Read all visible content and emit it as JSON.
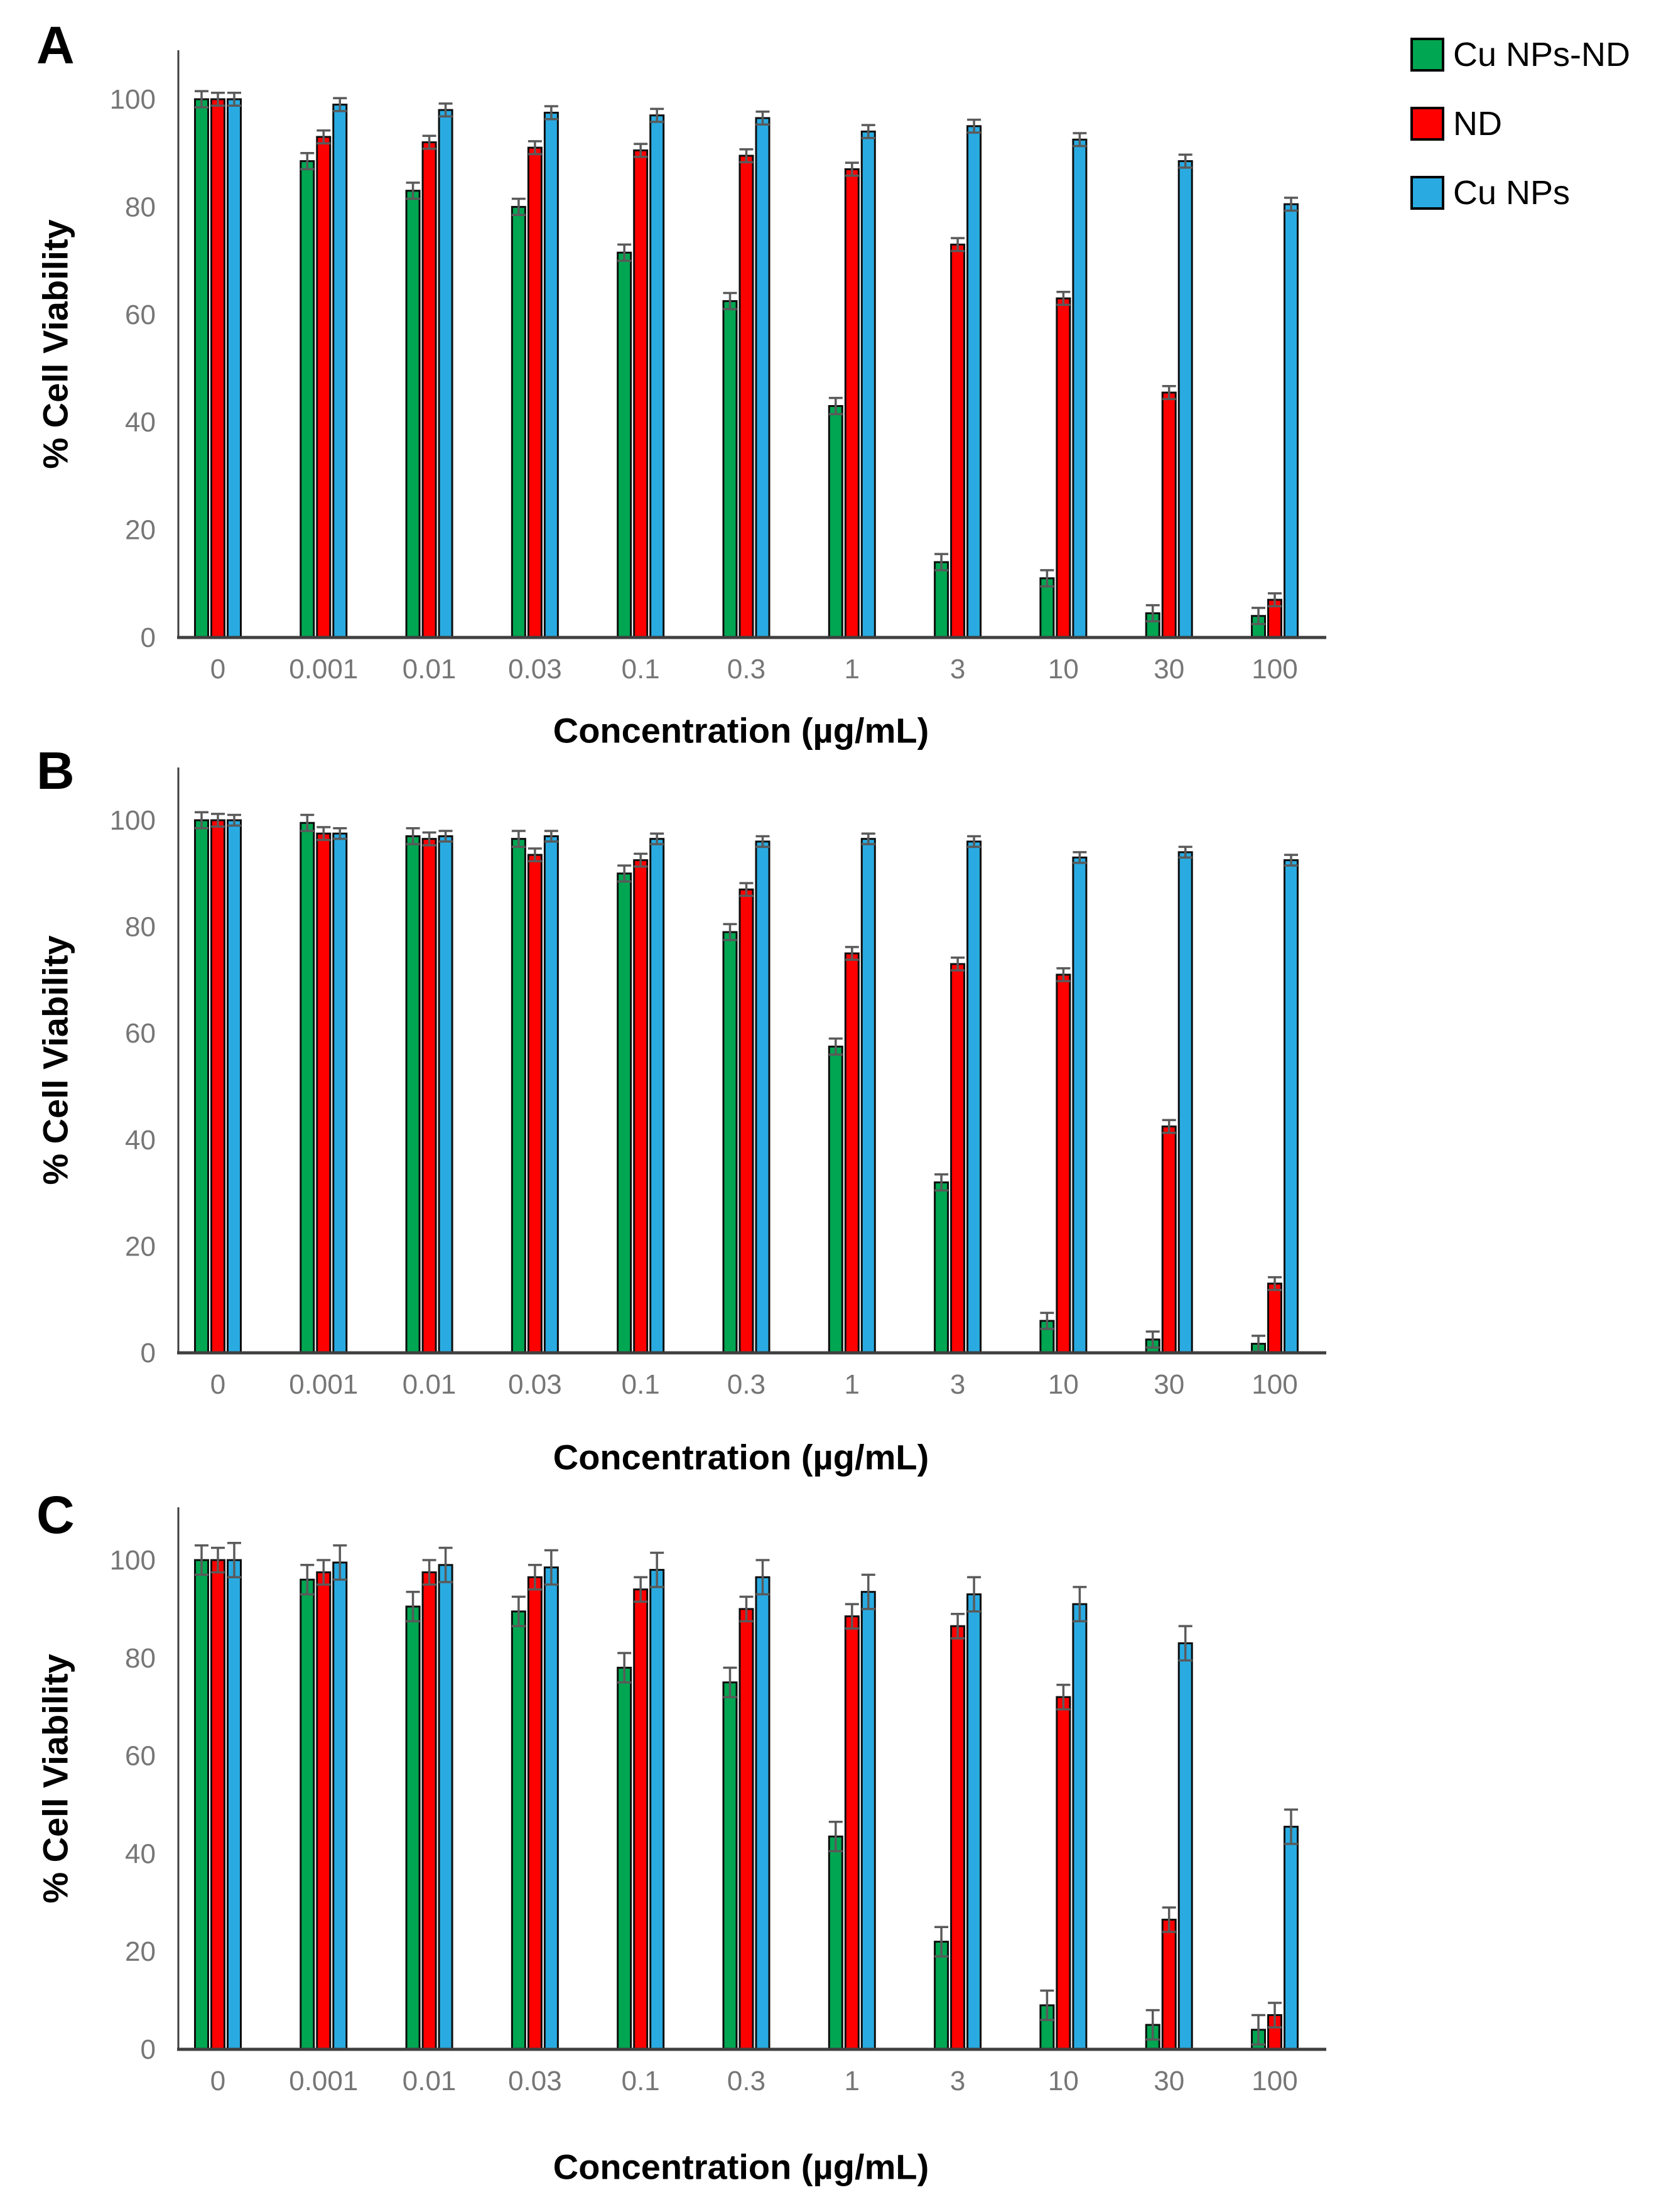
{
  "figure": {
    "ylabel": "% Cell Viability",
    "xlabel": "Concentration (µg/mL)"
  },
  "legend": {
    "items": [
      {
        "label": "Cu NPs-ND",
        "color": "#00A651"
      },
      {
        "label": "ND",
        "color": "#FF0000"
      },
      {
        "label": "Cu NPs",
        "color": "#29ABE2"
      }
    ]
  },
  "chart_data": [
    {
      "type": "bar",
      "panel": "A",
      "xlabel": "Concentration (µg/mL)",
      "ylabel": "% Cell Viability",
      "categories": [
        "0",
        "0.001",
        "0.01",
        "0.03",
        "0.1",
        "0.3",
        "1",
        "3",
        "10",
        "30",
        "100"
      ],
      "y_ticks": [
        0,
        20,
        40,
        60,
        80,
        100
      ],
      "ylim": [
        0,
        110
      ],
      "grid": false,
      "legend_position": "top-right",
      "series": [
        {
          "name": "Cu NPs-ND",
          "color": "#00A651",
          "error": 1.5,
          "values": [
            100,
            88.5,
            83,
            80,
            71.5,
            62.5,
            43,
            14,
            11,
            4.5,
            4
          ]
        },
        {
          "name": "ND",
          "color": "#FF0000",
          "error": 1.2,
          "values": [
            100,
            93,
            92,
            91,
            90.5,
            89.5,
            87,
            73,
            63,
            45.5,
            7
          ]
        },
        {
          "name": "Cu NPs",
          "color": "#29ABE2",
          "error": 1.2,
          "values": [
            100,
            99,
            98,
            97.5,
            97,
            96.5,
            94,
            95,
            92.5,
            88.5,
            80.5
          ]
        }
      ]
    },
    {
      "type": "bar",
      "panel": "B",
      "xlabel": "Concentration (µg/mL)",
      "ylabel": "% Cell Viability",
      "categories": [
        "0",
        "0.001",
        "0.01",
        "0.03",
        "0.1",
        "0.3",
        "1",
        "3",
        "10",
        "30",
        "100"
      ],
      "y_ticks": [
        0,
        20,
        40,
        60,
        80,
        100
      ],
      "ylim": [
        0,
        110
      ],
      "grid": false,
      "legend_position": "none",
      "series": [
        {
          "name": "Cu NPs-ND",
          "color": "#00A651",
          "error": 1.5,
          "values": [
            100,
            99.5,
            97,
            96.5,
            90,
            79,
            57.5,
            32,
            6,
            2.5,
            1.7
          ]
        },
        {
          "name": "ND",
          "color": "#FF0000",
          "error": 1.2,
          "values": [
            100,
            97.5,
            96.5,
            93.5,
            92.5,
            87,
            75,
            73,
            71,
            42.5,
            13
          ]
        },
        {
          "name": "Cu NPs",
          "color": "#29ABE2",
          "error": 1.0,
          "values": [
            100,
            97.5,
            97,
            97,
            96.5,
            96,
            96.5,
            96,
            93,
            94,
            92.5
          ]
        }
      ]
    },
    {
      "type": "bar",
      "panel": "C",
      "xlabel": "Concentration (µg/mL)",
      "ylabel": "% Cell Viability",
      "categories": [
        "0",
        "0.001",
        "0.01",
        "0.03",
        "0.1",
        "0.3",
        "1",
        "3",
        "10",
        "30",
        "100"
      ],
      "y_ticks": [
        0,
        20,
        40,
        60,
        80,
        100
      ],
      "ylim": [
        0,
        110
      ],
      "grid": false,
      "legend_position": "none",
      "series": [
        {
          "name": "Cu NPs-ND",
          "color": "#00A651",
          "error": 3,
          "values": [
            100,
            96,
            90.5,
            89.5,
            78,
            75,
            43.5,
            22,
            9,
            5,
            4
          ]
        },
        {
          "name": "ND",
          "color": "#FF0000",
          "error": 2.5,
          "values": [
            100,
            97.5,
            97.5,
            96.5,
            94,
            90,
            88.5,
            86.5,
            72,
            26.5,
            7
          ]
        },
        {
          "name": "Cu NPs",
          "color": "#29ABE2",
          "error": 3.5,
          "values": [
            100,
            99.5,
            99,
            98.5,
            98,
            96.5,
            93.5,
            93,
            91,
            83,
            45.5
          ]
        }
      ]
    }
  ]
}
